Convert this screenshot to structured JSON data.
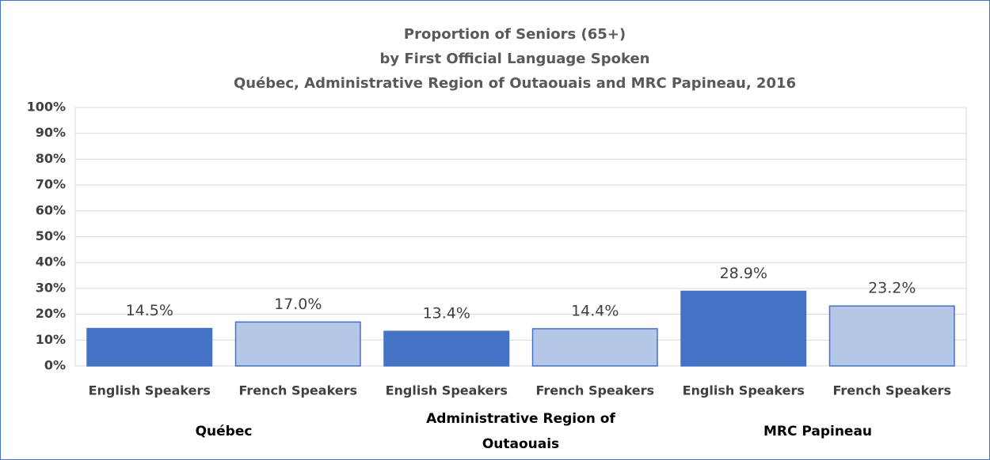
{
  "chart_data": {
    "type": "bar",
    "title": [
      "Proportion of Seniors (65+)",
      "by First Official Language Spoken",
      "Québec, Administrative Region of Outaouais and MRC Papineau, 2016"
    ],
    "categories": [
      "English Speakers",
      "French Speakers",
      "English Speakers",
      "French Speakers",
      "English Speakers",
      "French Speakers"
    ],
    "groups": [
      "Québec",
      "Administrative Region of Outaouais",
      "MRC Papineau"
    ],
    "values": [
      14.5,
      17.0,
      13.4,
      14.4,
      28.9,
      23.2
    ],
    "value_labels": [
      "14.5%",
      "17.0%",
      "13.4%",
      "14.4%",
      "28.9%",
      "23.2%"
    ],
    "colors": [
      "#4472c4",
      "#b4c7e7",
      "#4472c4",
      "#b4c7e7",
      "#4472c4",
      "#b4c7e7"
    ],
    "ylim": [
      0,
      100
    ],
    "yticks": [
      {
        "value": 0,
        "label": "0%"
      },
      {
        "value": 10,
        "label": "10%"
      },
      {
        "value": 20,
        "label": "20%"
      },
      {
        "value": 30,
        "label": "30%"
      },
      {
        "value": 40,
        "label": "40%"
      },
      {
        "value": 50,
        "label": "50%"
      },
      {
        "value": 60,
        "label": "60%"
      },
      {
        "value": 70,
        "label": "70%"
      },
      {
        "value": 80,
        "label": "80%"
      },
      {
        "value": 90,
        "label": "90%"
      },
      {
        "value": 100,
        "label": "100%"
      }
    ],
    "grid": true
  }
}
